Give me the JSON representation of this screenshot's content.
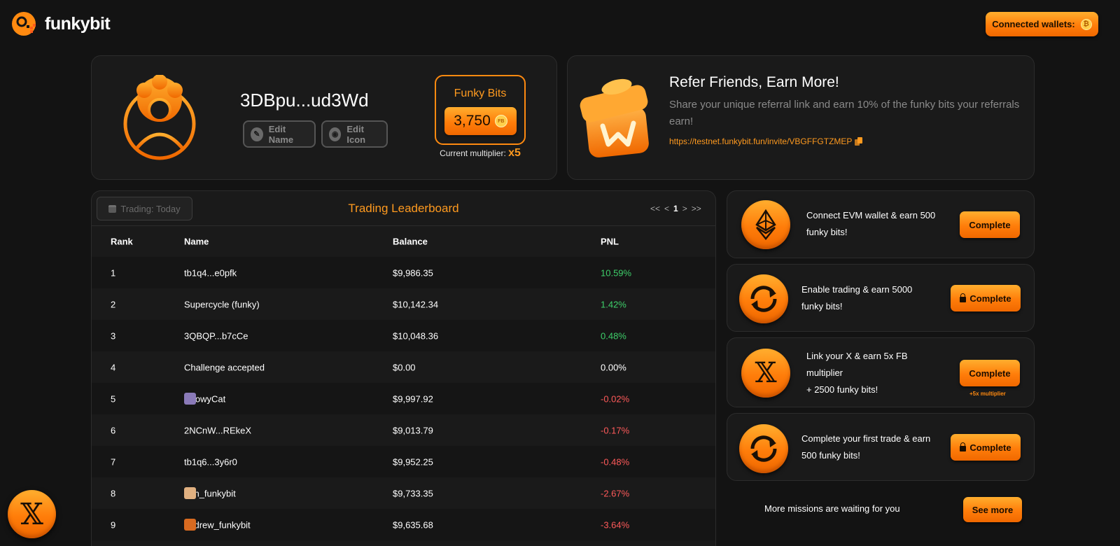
{
  "header": {
    "logo_text": "funkybit",
    "connected_wallets_label": "Connected wallets:",
    "wallet_icon_glyph": "₿"
  },
  "profile": {
    "username": "3DBpu...ud3Wd",
    "edit_name_label": "Edit Name",
    "edit_icon_label": "Edit Icon",
    "funky_bits_title": "Funky Bits",
    "funky_bits_value": "3,750",
    "coin_label": "FB",
    "multiplier_label": "Current multiplier:",
    "multiplier_value": "x5"
  },
  "referral": {
    "title": "Refer Friends, Earn More!",
    "description": "Share your unique referral link and earn 10% of the funky bits your referrals earn!",
    "link": "https://testnet.funkybit.fun/invite/VBGFFGTZMEP"
  },
  "leaderboard": {
    "period_label": "Trading: Today",
    "title": "Trading Leaderboard",
    "pager": {
      "first": "<<",
      "prev": "<",
      "current": "1",
      "next": ">",
      "last": ">>"
    },
    "columns": {
      "rank": "Rank",
      "name": "Name",
      "balance": "Balance",
      "pnl": "PNL"
    },
    "rows": [
      {
        "rank": "1",
        "name": "tb1q4...e0pfk",
        "balance": "$9,986.35",
        "pnl": "10.59%",
        "trend": "pos",
        "avatar": null
      },
      {
        "rank": "2",
        "name": "Supercycle (funky)",
        "balance": "$10,142.34",
        "pnl": "1.42%",
        "trend": "pos",
        "avatar": null
      },
      {
        "rank": "3",
        "name": "3QBQP...b7cCe",
        "balance": "$10,048.36",
        "pnl": "0.48%",
        "trend": "pos",
        "avatar": null
      },
      {
        "rank": "4",
        "name": "Challenge accepted",
        "balance": "$0.00",
        "pnl": "0.00%",
        "trend": "zero",
        "avatar": null
      },
      {
        "rank": "5",
        "name": "SnowyCat",
        "balance": "$9,997.92",
        "pnl": "-0.02%",
        "trend": "neg",
        "avatar": "#8a7ab8"
      },
      {
        "rank": "6",
        "name": "2NCnW...REkeX",
        "balance": "$9,013.79",
        "pnl": "-0.17%",
        "trend": "neg",
        "avatar": null
      },
      {
        "rank": "7",
        "name": "tb1q6...3y6r0",
        "balance": "$9,952.25",
        "pnl": "-0.48%",
        "trend": "neg",
        "avatar": null
      },
      {
        "rank": "8",
        "name": "ben_funkybit",
        "balance": "$9,733.35",
        "pnl": "-2.67%",
        "trend": "neg",
        "avatar": "#e0b080"
      },
      {
        "rank": "9",
        "name": "andrew_funkybit",
        "balance": "$9,635.68",
        "pnl": "-3.64%",
        "trend": "neg",
        "avatar": "#d86a20"
      }
    ]
  },
  "missions": [
    {
      "icon": "ethereum-icon",
      "text": "Connect EVM wallet & earn 500 funky bits!",
      "button": "Complete",
      "locked": false,
      "note": ""
    },
    {
      "icon": "refresh-icon",
      "text": "Enable trading & earn 5000 funky bits!",
      "button": "Complete",
      "locked": true,
      "note": ""
    },
    {
      "icon": "x-logo-icon",
      "text_lines": [
        "Link your X & earn 5x FB",
        "multiplier",
        "+ 2500 funky bits!"
      ],
      "button": "Complete",
      "locked": false,
      "note": "+5x multiplier"
    },
    {
      "icon": "refresh-icon",
      "text": "Complete your first trade & earn 500 funky bits!",
      "button": "Complete",
      "locked": true,
      "note": ""
    }
  ],
  "more_missions": {
    "text": "More missions are waiting for you",
    "button": "See more"
  },
  "floating": {
    "x_glyph": "𝕏"
  },
  "colors": {
    "accent": "#ff8a10",
    "positive": "#3ecf6a",
    "negative": "#ff5a5a",
    "background": "#131313",
    "card": "#1a1a1a"
  }
}
